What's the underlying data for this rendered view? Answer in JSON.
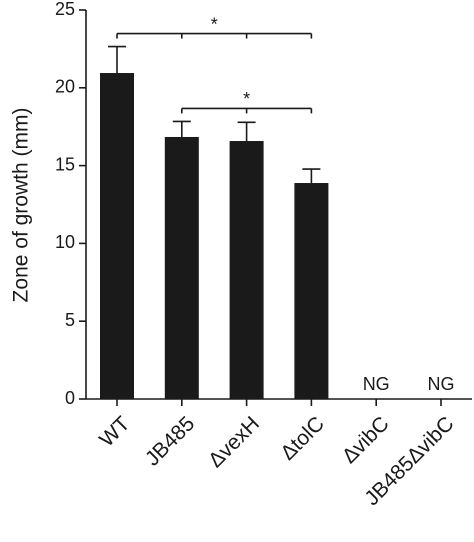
{
  "chart_data": {
    "type": "bar",
    "ylabel": "Zone of growth (mm)",
    "categories": [
      "WT",
      "JB485",
      "ΔvexH",
      "ΔtolC",
      "ΔvibC",
      "JB485ΔvibC"
    ],
    "values": [
      20.95,
      16.84,
      16.58,
      13.88,
      null,
      null
    ],
    "errors": [
      1.7,
      1.0,
      1.2,
      0.9,
      null,
      null
    ],
    "value_labels": [
      null,
      null,
      null,
      null,
      "NG",
      "NG"
    ],
    "color": "#1a1a1a",
    "ylim": [
      0,
      25
    ],
    "yticks": [
      0,
      5,
      10,
      15,
      20,
      25
    ],
    "annotations": [
      {
        "text": "*",
        "from": 0,
        "to": 3
      },
      {
        "text": "*",
        "from": 1,
        "to": 3
      }
    ]
  }
}
